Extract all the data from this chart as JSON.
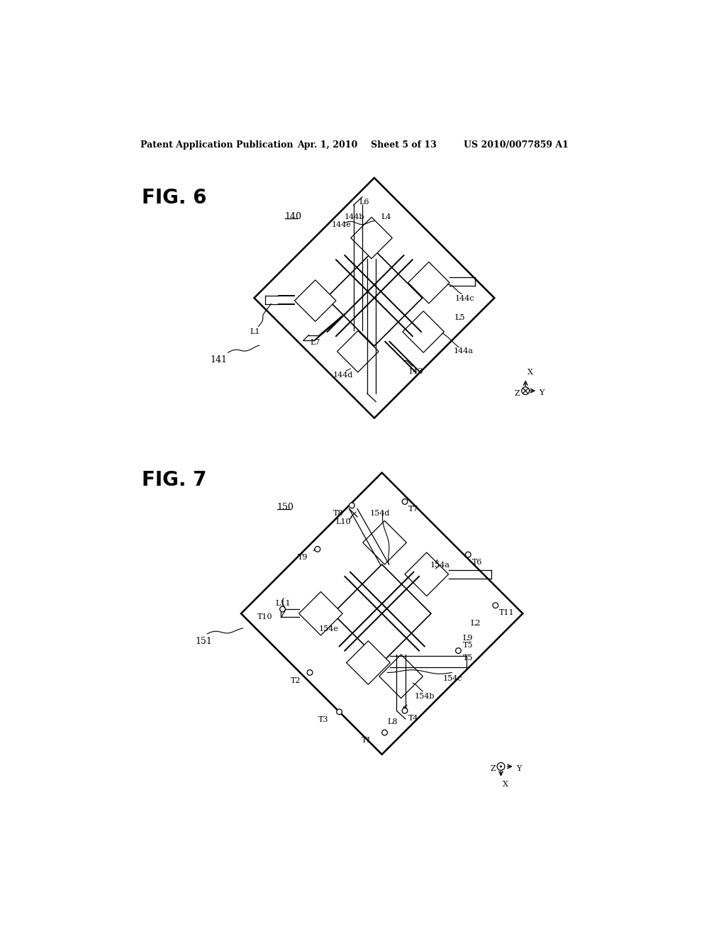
{
  "bg_color": "#ffffff",
  "header_text": "Patent Application Publication",
  "header_date": "Apr. 1, 2010",
  "header_sheet": "Sheet 5 of 13",
  "header_patent": "US 2010/0077859 A1",
  "fig6_label": "FIG. 6",
  "fig7_label": "FIG. 7",
  "fig6_ref": "140",
  "fig6_corner": "141",
  "fig7_ref": "150",
  "fig7_corner": "151"
}
